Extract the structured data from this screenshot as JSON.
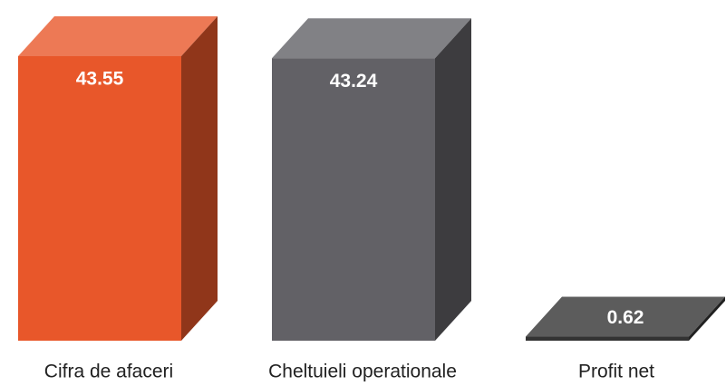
{
  "chart_data": {
    "type": "bar3d",
    "categories": [
      "Cifra de afaceri",
      "Cheltuieli operationale",
      "Profit net"
    ],
    "values": [
      43.55,
      43.24,
      0.62
    ],
    "colors": [
      "#e8572a",
      "#626166",
      "#333333"
    ]
  }
}
